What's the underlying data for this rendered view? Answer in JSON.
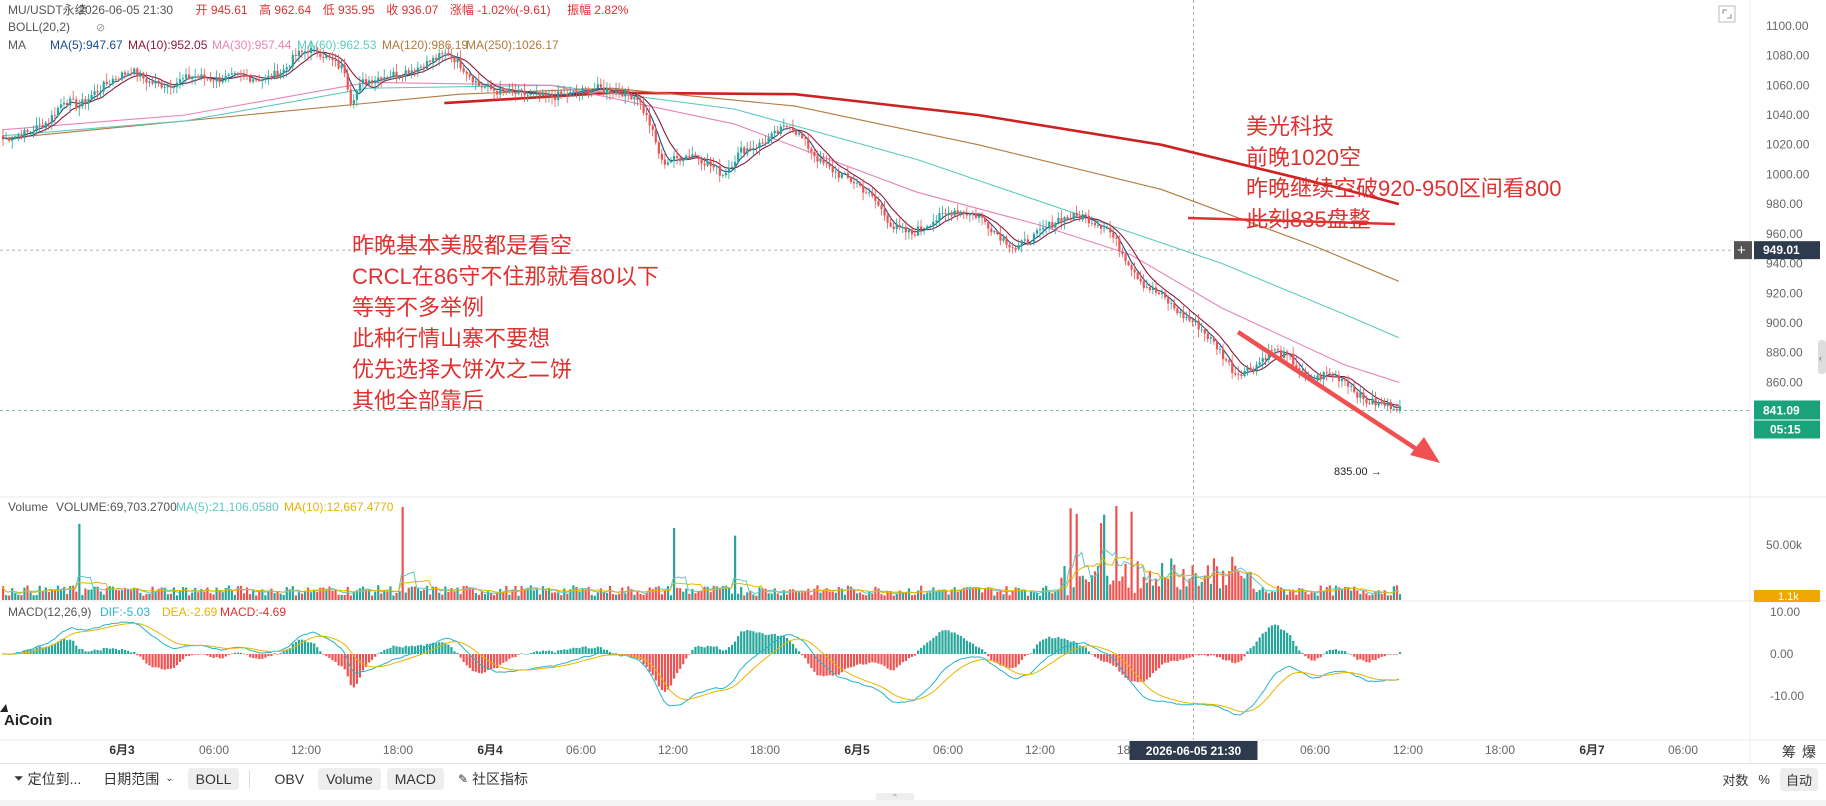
{
  "colors": {
    "up": "#26a69a",
    "down": "#ef5350",
    "ma5": "#1a4a8a",
    "ma10": "#8b1a3a",
    "ma30": "#e884b8",
    "ma60": "#5ec9c0",
    "ma120": "#b07a3c",
    "ma250": "#cc2222",
    "dif": "#26b5c7",
    "dea": "#e8b400",
    "note": "#e03030",
    "price_tag": "#2e3b4e",
    "last_tag": "#1aa37a",
    "vol_tag": "#f0a800"
  },
  "header": {
    "line1": [
      "MU/USDT永续",
      "2026-06-05 21:30",
      "开 945.61",
      "高 962.64",
      "低 935.95",
      "收 936.07",
      "涨幅 -1.02%(-9.61)",
      "振幅 2.82%"
    ],
    "boll": "BOLL(20,2)",
    "ma_labels": [
      "MA",
      "MA(5):947.67",
      "MA(10):952.05",
      "MA(30):957.44",
      "MA(60):962.53",
      "MA(120):986.19",
      "MA(250):1026.17"
    ]
  },
  "volume_header": [
    "Volume",
    "VOLUME:69,703.2700",
    "MA(5):21,106.0580",
    "MA(10):12,667.4770"
  ],
  "macd_header": [
    "MACD(12,26,9)",
    "DIF:-5.03",
    "DEA:-2.69",
    "MACD:-4.69"
  ],
  "annotations": {
    "left_block": [
      "昨晚基本美股都是看空",
      "CRCL在86守不住那就看80以下",
      "等等不多举例",
      "此种行情山寨不要想",
      "优先选择大饼次之二饼",
      "其他全部靠后"
    ],
    "right_block": [
      "美光科技",
      "前晚1020空",
      "昨晚继续空破920-950区间看800",
      "此刻835盘整"
    ],
    "low_label": "835.00 →"
  },
  "logo": "AiCoin",
  "price_tags": {
    "crosshair": "949.01",
    "last": "841.09",
    "countdown": "05:15",
    "volume": "1.1k"
  },
  "time_cursor_label": "2026-06-05 21:30",
  "bottom_bar": {
    "left": [
      "定位到...",
      "日期范围",
      "BOLL"
    ],
    "indicators": [
      "OBV",
      "Volume",
      "MACD"
    ],
    "community": "社区指标",
    "right": [
      "对数",
      "%",
      "自动"
    ]
  },
  "corner_labels": [
    "筹",
    "爆"
  ],
  "chart_data": {
    "type": "candlestick",
    "symbol": "MU/USDT永续",
    "interval_hours": 1,
    "price_axis": {
      "range": [
        832,
        1112
      ],
      "ticks": [
        1100,
        1080,
        1060,
        1040,
        1020,
        1000,
        980,
        960,
        940,
        920,
        900,
        880,
        860
      ]
    },
    "volume_axis": {
      "ticks": [
        "50.00k"
      ]
    },
    "macd_axis": {
      "ticks": [
        "10.00",
        "0.00",
        "-10.00"
      ]
    },
    "time_axis": {
      "labels": [
        "6月3",
        "06:00",
        "12:00",
        "18:00",
        "6月4",
        "06:00",
        "12:00",
        "18:00",
        "6月5",
        "06:00",
        "12:00",
        "18:00",
        "06:00",
        "12:00",
        "18:00",
        "6月7",
        "06:00"
      ]
    },
    "close_path": [
      [
        0,
        1024
      ],
      [
        8,
        1028
      ],
      [
        15,
        1036
      ],
      [
        20,
        1050
      ],
      [
        25,
        1046
      ],
      [
        30,
        1055
      ],
      [
        36,
        1064
      ],
      [
        42,
        1070
      ],
      [
        48,
        1062
      ],
      [
        54,
        1060
      ],
      [
        62,
        1066
      ],
      [
        70,
        1064
      ],
      [
        78,
        1066
      ],
      [
        86,
        1064
      ],
      [
        92,
        1070
      ],
      [
        96,
        1080
      ],
      [
        100,
        1084
      ],
      [
        104,
        1082
      ],
      [
        108,
        1076
      ],
      [
        112,
        1070
      ],
      [
        114,
        1050
      ],
      [
        118,
        1062
      ],
      [
        124,
        1066
      ],
      [
        130,
        1068
      ],
      [
        136,
        1072
      ],
      [
        142,
        1078
      ],
      [
        146,
        1082
      ],
      [
        150,
        1074
      ],
      [
        156,
        1060
      ],
      [
        162,
        1056
      ],
      [
        170,
        1054
      ],
      [
        178,
        1052
      ],
      [
        186,
        1054
      ],
      [
        194,
        1058
      ],
      [
        202,
        1056
      ],
      [
        208,
        1052
      ],
      [
        212,
        1034
      ],
      [
        216,
        1008
      ],
      [
        220,
        1010
      ],
      [
        226,
        1014
      ],
      [
        232,
        1006
      ],
      [
        236,
        1000
      ],
      [
        242,
        1016
      ],
      [
        248,
        1020
      ],
      [
        254,
        1028
      ],
      [
        258,
        1034
      ],
      [
        262,
        1024
      ],
      [
        268,
        1008
      ],
      [
        274,
        1000
      ],
      [
        280,
        994
      ],
      [
        286,
        982
      ],
      [
        292,
        964
      ],
      [
        298,
        960
      ],
      [
        304,
        968
      ],
      [
        312,
        976
      ],
      [
        320,
        972
      ],
      [
        326,
        960
      ],
      [
        332,
        950
      ],
      [
        338,
        958
      ],
      [
        346,
        970
      ],
      [
        354,
        972
      ],
      [
        362,
        964
      ],
      [
        368,
        944
      ],
      [
        374,
        926
      ],
      [
        380,
        918
      ],
      [
        386,
        906
      ],
      [
        392,
        898
      ],
      [
        398,
        884
      ],
      [
        404,
        866
      ],
      [
        410,
        870
      ],
      [
        416,
        882
      ],
      [
        422,
        876
      ],
      [
        428,
        860
      ],
      [
        434,
        866
      ],
      [
        440,
        862
      ],
      [
        446,
        848
      ],
      [
        452,
        845
      ],
      [
        458,
        844
      ]
    ],
    "moving_averages": {
      "ma30": [
        [
          0,
          1030
        ],
        [
          60,
          1040
        ],
        [
          120,
          1062
        ],
        [
          180,
          1060
        ],
        [
          240,
          1034
        ],
        [
          300,
          988
        ],
        [
          340,
          966
        ],
        [
          370,
          946
        ],
        [
          400,
          910
        ],
        [
          440,
          872
        ],
        [
          458,
          860
        ]
      ],
      "ma60": [
        [
          0,
          1026
        ],
        [
          60,
          1036
        ],
        [
          120,
          1058
        ],
        [
          180,
          1060
        ],
        [
          240,
          1044
        ],
        [
          300,
          1010
        ],
        [
          360,
          968
        ],
        [
          400,
          940
        ],
        [
          440,
          906
        ],
        [
          458,
          890
        ]
      ],
      "ma120": [
        [
          0,
          1024
        ],
        [
          80,
          1040
        ],
        [
          150,
          1054
        ],
        [
          200,
          1058
        ],
        [
          260,
          1046
        ],
        [
          320,
          1020
        ],
        [
          380,
          990
        ],
        [
          430,
          952
        ],
        [
          458,
          928
        ]
      ],
      "ma250": [
        [
          145,
          1048
        ],
        [
          200,
          1055
        ],
        [
          260,
          1054
        ],
        [
          320,
          1040
        ],
        [
          380,
          1020
        ],
        [
          440,
          990
        ],
        [
          458,
          980
        ]
      ]
    },
    "crosshair": {
      "price": 949.01,
      "index": 390
    },
    "last_price": 841.09,
    "low_marker": 835.0
  }
}
